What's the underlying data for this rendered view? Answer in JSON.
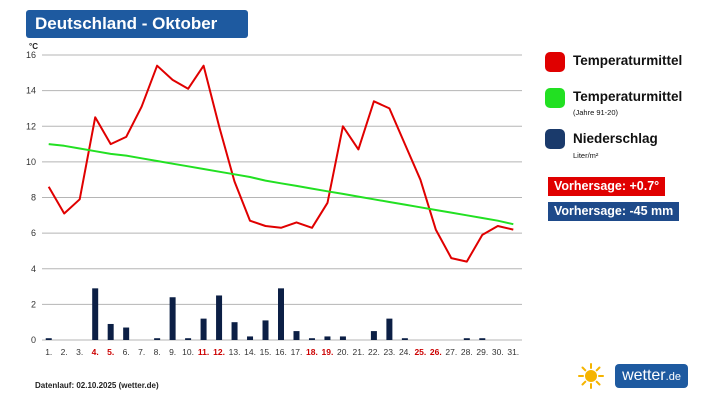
{
  "title": "Deutschland - Oktober",
  "unit_label": "°C",
  "legend": {
    "temp": {
      "label": "Temperaturmittel",
      "color": "#e00000"
    },
    "clim": {
      "label": "Temperaturmittel",
      "sub": "(Jahre 91-20)",
      "color": "#22e022"
    },
    "rain": {
      "label": "Niederschlag",
      "sub": "Liter/m²",
      "color": "#1a3a6b"
    }
  },
  "forecast_temp": {
    "text": "Vorhersage: +0.7°",
    "color": "#e00000"
  },
  "forecast_rain": {
    "text": "Vorhersage: -45 mm",
    "color": "#1e4a8a"
  },
  "footer": "Datenlauf: 02.10.2025 (wetter.de)",
  "logo": {
    "name": "wetter",
    "tld": ".de",
    "icon": "sun-icon"
  },
  "chart_data": {
    "type": "line",
    "x": [
      "1.",
      "2.",
      "3.",
      "4.",
      "5.",
      "6.",
      "7.",
      "8.",
      "9.",
      "10.",
      "11.",
      "12.",
      "13.",
      "14.",
      "15.",
      "16.",
      "17.",
      "18.",
      "19.",
      "20.",
      "21.",
      "22.",
      "23.",
      "24.",
      "25.",
      "26.",
      "27.",
      "28.",
      "29.",
      "30.",
      "31."
    ],
    "weekend_days": [
      "4.",
      "5.",
      "11.",
      "12.",
      "18.",
      "19.",
      "25.",
      "26."
    ],
    "weekend_color": "#cc0000",
    "ylim": [
      0,
      16
    ],
    "yticks": [
      0,
      2,
      4,
      6,
      8,
      10,
      12,
      14,
      16
    ],
    "series": [
      {
        "name": "Temperaturmittel",
        "type": "line",
        "color": "#e00000",
        "values": [
          8.6,
          7.1,
          7.9,
          12.5,
          11.0,
          11.4,
          13.1,
          15.4,
          14.6,
          14.1,
          15.4,
          12.0,
          8.9,
          6.7,
          6.4,
          6.3,
          6.6,
          6.3,
          7.7,
          12.0,
          10.7,
          13.4,
          13.0,
          11.0,
          9.0,
          6.2,
          4.6,
          4.4,
          5.9,
          6.4,
          6.2
        ]
      },
      {
        "name": "Temperaturmittel (Jahre 91-20)",
        "type": "line",
        "color": "#22e022",
        "values": [
          11.0,
          10.9,
          10.75,
          10.6,
          10.45,
          10.35,
          10.2,
          10.05,
          9.9,
          9.75,
          9.6,
          9.45,
          9.3,
          9.15,
          8.95,
          8.8,
          8.65,
          8.5,
          8.35,
          8.2,
          8.05,
          7.9,
          7.75,
          7.6,
          7.45,
          7.3,
          7.15,
          7.0,
          6.85,
          6.7,
          6.5
        ]
      },
      {
        "name": "Niederschlag",
        "type": "bar",
        "color": "#0c1f45",
        "values": [
          0.1,
          0,
          0,
          2.9,
          0.9,
          0.7,
          0,
          0.1,
          2.4,
          0.1,
          1.2,
          2.5,
          1.0,
          0.2,
          1.1,
          2.9,
          0.5,
          0.1,
          0.2,
          0.2,
          0,
          0.5,
          1.2,
          0.1,
          0,
          0,
          0,
          0.1,
          0.1,
          0,
          0
        ]
      }
    ]
  }
}
